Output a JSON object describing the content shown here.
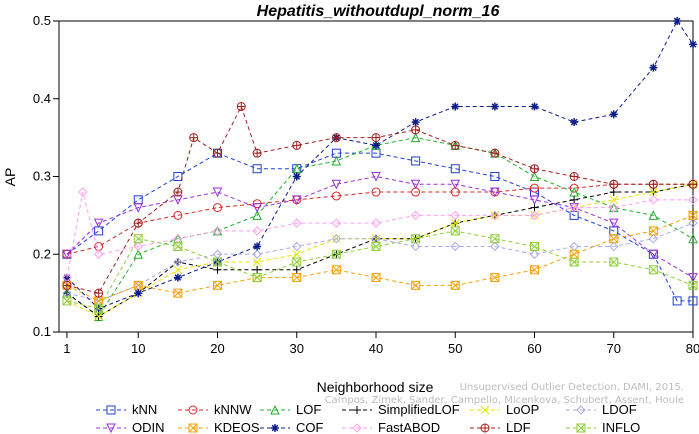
{
  "chart_data": {
    "type": "line",
    "title": "Hepatitis_withoutdupl_norm_16",
    "xlabel": "Neighborhood size",
    "ylabel": "AP",
    "xlim": [
      0,
      80
    ],
    "ylim": [
      0.1,
      0.5
    ],
    "xticks": [
      1,
      10,
      20,
      30,
      40,
      50,
      60,
      70,
      80
    ],
    "yticks": [
      0.1,
      0.2,
      0.3,
      0.4,
      0.5
    ],
    "grid": false,
    "legend_position": "bottom",
    "series": [
      {
        "name": "kNN",
        "color": "#1f3fd6",
        "marker": "square",
        "x": [
          1,
          5,
          10,
          15,
          20,
          25,
          30,
          35,
          40,
          45,
          50,
          55,
          60,
          65,
          70,
          75,
          78,
          80
        ],
        "values": [
          0.2,
          0.23,
          0.27,
          0.3,
          0.33,
          0.31,
          0.31,
          0.33,
          0.33,
          0.32,
          0.31,
          0.3,
          0.28,
          0.25,
          0.23,
          0.2,
          0.14,
          0.14
        ]
      },
      {
        "name": "kNNW",
        "color": "#d62a2a",
        "marker": "circle",
        "x": [
          1,
          5,
          10,
          15,
          20,
          25,
          30,
          35,
          40,
          45,
          50,
          55,
          60,
          65,
          70,
          75,
          80
        ],
        "values": [
          0.2,
          0.21,
          0.24,
          0.25,
          0.26,
          0.265,
          0.27,
          0.275,
          0.28,
          0.28,
          0.28,
          0.28,
          0.285,
          0.285,
          0.29,
          0.29,
          0.29
        ]
      },
      {
        "name": "LOF",
        "color": "#22b02a",
        "marker": "triangle",
        "x": [
          1,
          5,
          10,
          15,
          20,
          25,
          30,
          35,
          40,
          45,
          50,
          55,
          60,
          65,
          70,
          75,
          80
        ],
        "values": [
          0.15,
          0.12,
          0.2,
          0.22,
          0.23,
          0.25,
          0.31,
          0.32,
          0.34,
          0.35,
          0.34,
          0.33,
          0.3,
          0.28,
          0.26,
          0.25,
          0.22
        ]
      },
      {
        "name": "SimplifiedLOF",
        "color": "#000000",
        "marker": "plus",
        "x": [
          1,
          5,
          10,
          15,
          20,
          25,
          30,
          35,
          40,
          45,
          50,
          55,
          60,
          65,
          70,
          75,
          80
        ],
        "values": [
          0.15,
          0.12,
          0.15,
          0.19,
          0.18,
          0.18,
          0.18,
          0.2,
          0.22,
          0.22,
          0.24,
          0.25,
          0.26,
          0.27,
          0.28,
          0.28,
          0.29
        ]
      },
      {
        "name": "LoOP",
        "color": "#e6e600",
        "marker": "x",
        "x": [
          1,
          5,
          10,
          15,
          20,
          25,
          30,
          35,
          40,
          45,
          50,
          55,
          60,
          65,
          70,
          75,
          80
        ],
        "values": [
          0.14,
          0.12,
          0.15,
          0.18,
          0.19,
          0.19,
          0.2,
          0.22,
          0.22,
          0.22,
          0.24,
          0.25,
          0.25,
          0.26,
          0.27,
          0.28,
          0.29
        ]
      },
      {
        "name": "LDOF",
        "color": "#a9a9e6",
        "marker": "diamond",
        "x": [
          1,
          5,
          10,
          15,
          20,
          25,
          30,
          35,
          40,
          45,
          50,
          55,
          60,
          65,
          70,
          75,
          80
        ],
        "values": [
          0.15,
          0.14,
          0.16,
          0.19,
          0.2,
          0.2,
          0.21,
          0.22,
          0.22,
          0.21,
          0.21,
          0.21,
          0.2,
          0.21,
          0.21,
          0.22,
          0.24
        ]
      },
      {
        "name": "ODIN",
        "color": "#9a2fd8",
        "marker": "triangle-down",
        "x": [
          1,
          5,
          10,
          15,
          20,
          25,
          30,
          35,
          40,
          45,
          50,
          55,
          60,
          65,
          70,
          75,
          80
        ],
        "values": [
          0.2,
          0.24,
          0.26,
          0.27,
          0.28,
          0.26,
          0.27,
          0.29,
          0.3,
          0.29,
          0.29,
          0.28,
          0.27,
          0.26,
          0.24,
          0.2,
          0.17
        ]
      },
      {
        "name": "KDEOS",
        "color": "#f5a000",
        "marker": "square-x",
        "x": [
          1,
          5,
          10,
          15,
          20,
          25,
          30,
          35,
          40,
          45,
          50,
          55,
          60,
          65,
          70,
          75,
          80
        ],
        "values": [
          0.16,
          0.14,
          0.16,
          0.15,
          0.16,
          0.17,
          0.17,
          0.18,
          0.17,
          0.16,
          0.16,
          0.17,
          0.18,
          0.2,
          0.22,
          0.23,
          0.25
        ]
      },
      {
        "name": "COF",
        "color": "#0c1d8a",
        "marker": "star",
        "x": [
          1,
          5,
          10,
          15,
          20,
          25,
          30,
          35,
          40,
          45,
          50,
          55,
          60,
          65,
          70,
          75,
          78,
          80
        ],
        "values": [
          0.17,
          0.13,
          0.15,
          0.17,
          0.19,
          0.21,
          0.3,
          0.35,
          0.34,
          0.37,
          0.39,
          0.39,
          0.39,
          0.37,
          0.38,
          0.44,
          0.5,
          0.47
        ]
      },
      {
        "name": "FastABOD",
        "color": "#ff9ef0",
        "marker": "diamond",
        "x": [
          1,
          3,
          5,
          10,
          15,
          20,
          25,
          30,
          35,
          40,
          45,
          50,
          55,
          60,
          65,
          70,
          75,
          80
        ],
        "values": [
          0.17,
          0.28,
          0.2,
          0.21,
          0.22,
          0.23,
          0.23,
          0.24,
          0.24,
          0.24,
          0.25,
          0.25,
          0.25,
          0.25,
          0.26,
          0.26,
          0.27,
          0.27
        ]
      },
      {
        "name": "LDF",
        "color": "#a02020",
        "marker": "circle-plus",
        "x": [
          1,
          5,
          10,
          15,
          17,
          20,
          23,
          25,
          30,
          35,
          40,
          45,
          50,
          55,
          60,
          65,
          70,
          75,
          80
        ],
        "values": [
          0.16,
          0.15,
          0.24,
          0.28,
          0.35,
          0.33,
          0.39,
          0.33,
          0.34,
          0.35,
          0.35,
          0.36,
          0.34,
          0.33,
          0.31,
          0.3,
          0.29,
          0.29,
          0.29
        ]
      },
      {
        "name": "INFLO",
        "color": "#8fce3a",
        "marker": "square-x",
        "x": [
          1,
          5,
          10,
          15,
          20,
          25,
          30,
          35,
          40,
          45,
          50,
          55,
          60,
          65,
          70,
          75,
          80
        ],
        "values": [
          0.14,
          0.13,
          0.22,
          0.21,
          0.19,
          0.17,
          0.19,
          0.2,
          0.21,
          0.22,
          0.23,
          0.22,
          0.21,
          0.19,
          0.19,
          0.18,
          0.16
        ]
      }
    ],
    "watermark": "Campos, Zimek, Sander, Campello, Micenkova, Schubert, Assent, Houle\nUnsupervised Outlier Detection, DAMI, 2015."
  }
}
